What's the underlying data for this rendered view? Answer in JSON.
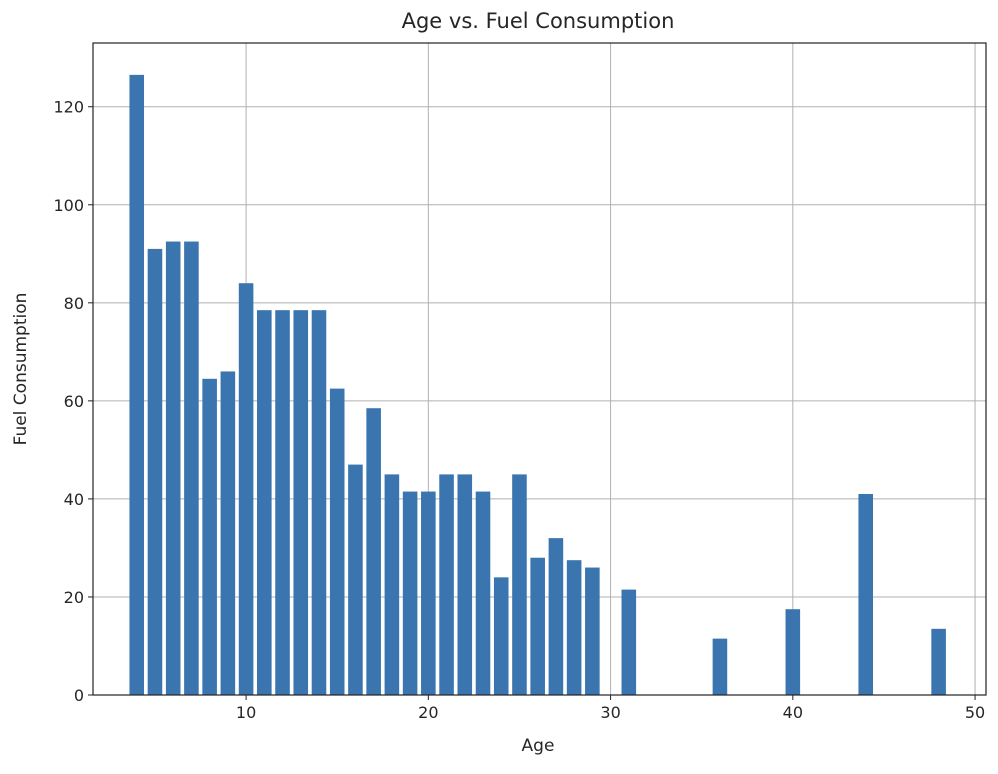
{
  "chart_data": {
    "type": "bar",
    "title": "Age vs. Fuel Consumption",
    "xlabel": "Age",
    "ylabel": "Fuel Consumption",
    "xlim": [
      1.6,
      50.6
    ],
    "ylim": [
      0,
      133
    ],
    "xticks": [
      10,
      20,
      30,
      40,
      50
    ],
    "yticks": [
      0,
      20,
      40,
      60,
      80,
      100,
      120
    ],
    "grid": true,
    "bar_width": 0.8,
    "color": "#3a75b0",
    "x": [
      4,
      5,
      6,
      7,
      8,
      9,
      10,
      11,
      12,
      13,
      14,
      15,
      16,
      17,
      18,
      19,
      20,
      21,
      22,
      23,
      24,
      25,
      26,
      27,
      28,
      29,
      31,
      36,
      40,
      44,
      48
    ],
    "values": [
      126.5,
      91,
      92.5,
      92.5,
      64.5,
      66,
      84,
      78.5,
      78.5,
      78.5,
      78.5,
      62.5,
      47,
      58.5,
      45,
      41.5,
      41.5,
      45,
      45,
      41.5,
      24,
      45,
      28,
      32,
      27.5,
      26,
      21.5,
      11.5,
      17.5,
      41,
      13.5
    ]
  }
}
